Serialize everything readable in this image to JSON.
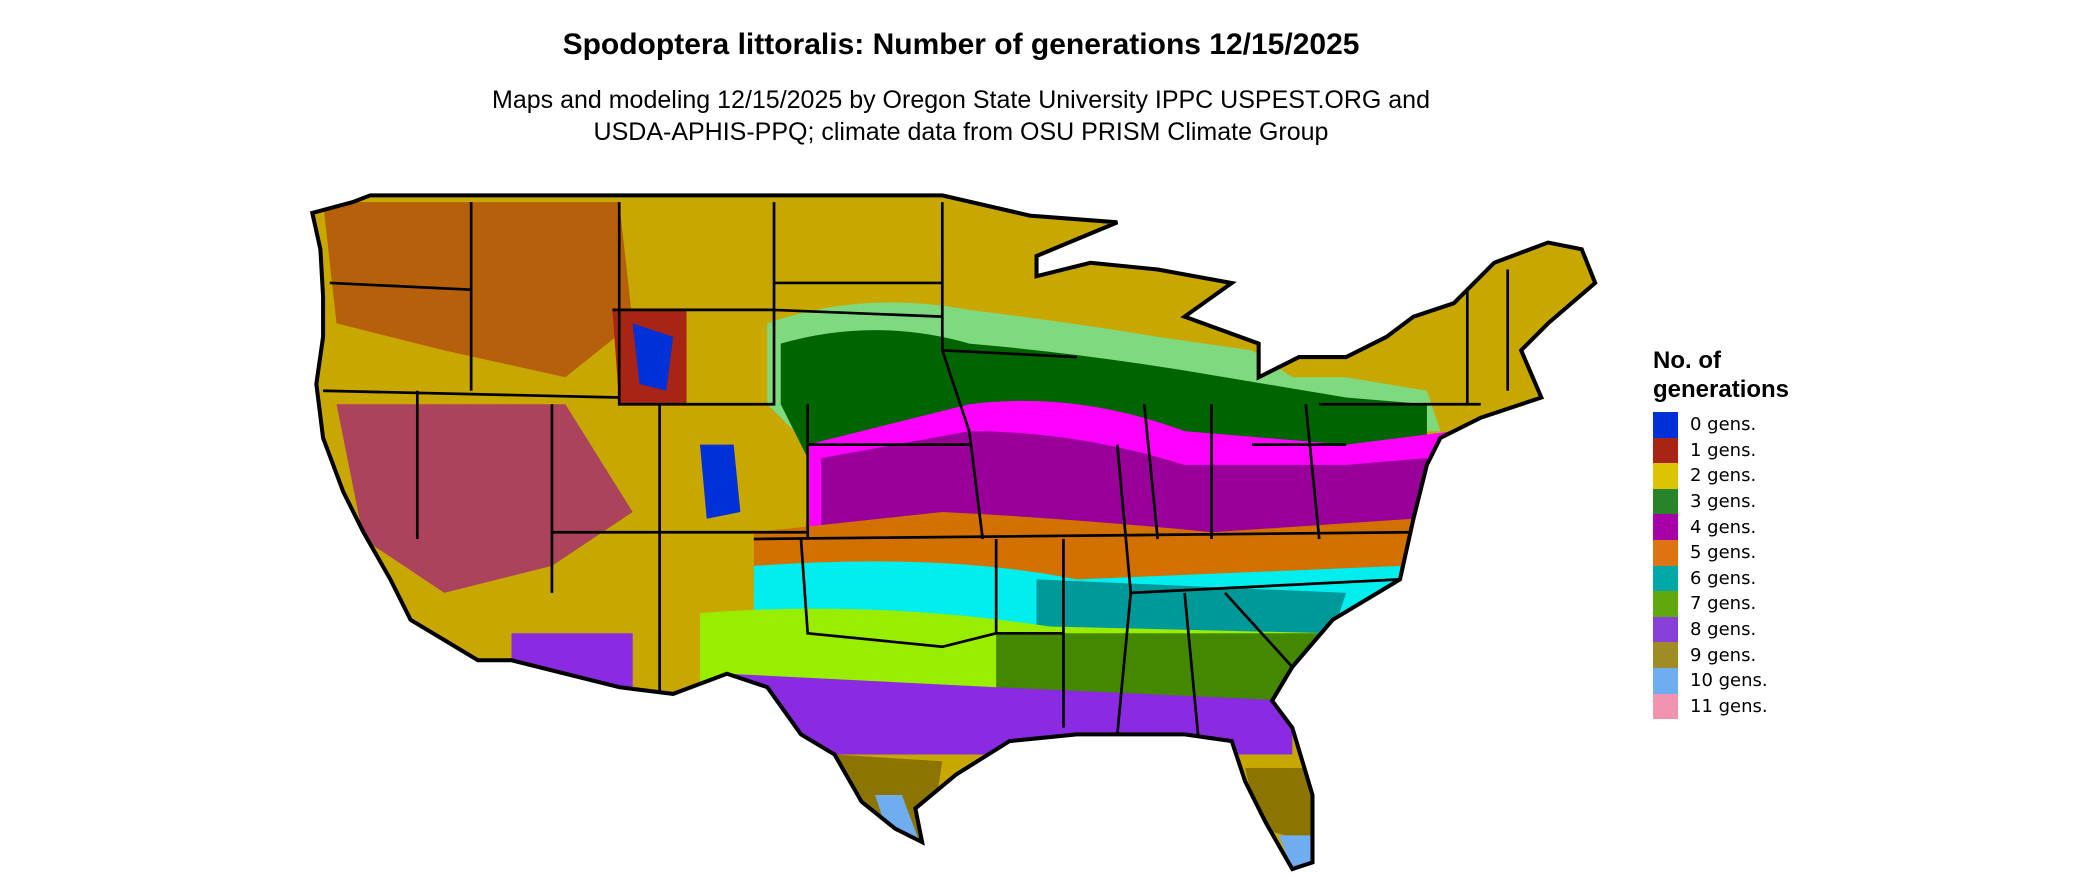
{
  "title": "Spodoptera littoralis: Number of generations 12/15/2025",
  "subtitle_line1": "Maps and modeling 12/15/2025 by Oregon State University IPPC USPEST.ORG and",
  "subtitle_line2": "USDA-APHIS-PPQ; climate data from OSU PRISM Climate Group",
  "legend": {
    "title_line1": "No. of",
    "title_line2": "generations",
    "items": [
      {
        "label": "0 gens.",
        "color": "#0030d8"
      },
      {
        "label": "1 gens.",
        "color": "#a82414"
      },
      {
        "label": "2 gens.",
        "color": "#dcc400"
      },
      {
        "label": "3 gens.",
        "color": "#288428"
      },
      {
        "label": "4 gens.",
        "color": "#a800a8"
      },
      {
        "label": "5 gens.",
        "color": "#dc7414"
      },
      {
        "label": "6 gens.",
        "color": "#00a8a8"
      },
      {
        "label": "7 gens.",
        "color": "#60a810"
      },
      {
        "label": "8 gens.",
        "color": "#8840d8"
      },
      {
        "label": "9 gens.",
        "color": "#a08c24"
      },
      {
        "label": "10 gens.",
        "color": "#70acf0"
      },
      {
        "label": "11 gens.",
        "color": "#f094b0"
      }
    ]
  }
}
